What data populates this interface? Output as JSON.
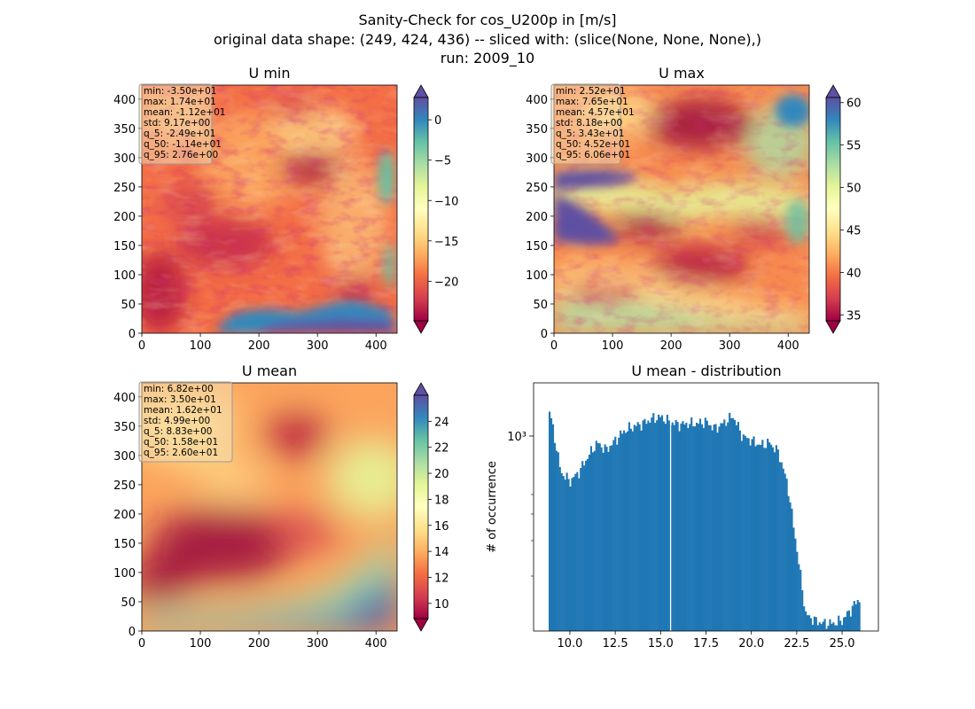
{
  "suptitle": {
    "line1": "Sanity-Check for cos_U200p in [m/s]",
    "line2": "original data shape: (249, 424, 436) -- sliced with: (slice(None, None, None),)",
    "line3": "run: 2009_10"
  },
  "panels": {
    "umin": {
      "title": "U min",
      "stats": [
        "min: -3.50e+01",
        "max: 1.74e+01",
        "mean: -1.12e+01",
        "std: 9.17e+00",
        "q_5: -2.49e+01",
        "q_50: -1.14e+01",
        "q_95: 2.76e+00"
      ],
      "x_ticks": [
        "0",
        "100",
        "200",
        "300",
        "400"
      ],
      "y_ticks": [
        "0",
        "50",
        "100",
        "150",
        "200",
        "250",
        "300",
        "350",
        "400"
      ],
      "colorbar_ticks": [
        "0",
        "−5",
        "−10",
        "−15",
        "−20"
      ]
    },
    "umax": {
      "title": "U max",
      "stats": [
        "min: 2.52e+01",
        "max: 7.65e+01",
        "mean: 4.57e+01",
        "std: 8.18e+00",
        "q_5: 3.43e+01",
        "q_50: 4.52e+01",
        "q_95: 6.06e+01"
      ],
      "x_ticks": [
        "0",
        "100",
        "200",
        "300",
        "400"
      ],
      "y_ticks": [
        "0",
        "50",
        "100",
        "150",
        "200",
        "250",
        "300",
        "350",
        "400"
      ],
      "colorbar_ticks": [
        "60",
        "55",
        "50",
        "45",
        "40",
        "35"
      ]
    },
    "umean": {
      "title": "U mean",
      "stats": [
        "min: 6.82e+00",
        "max: 3.50e+01",
        "mean: 1.62e+01",
        "std: 4.99e+00",
        "q_5: 8.83e+00",
        "q_50: 1.58e+01",
        "q_95: 2.60e+01"
      ],
      "x_ticks": [
        "0",
        "100",
        "200",
        "300",
        "400"
      ],
      "y_ticks": [
        "0",
        "50",
        "100",
        "150",
        "200",
        "250",
        "300",
        "350",
        "400"
      ],
      "colorbar_ticks": [
        "24",
        "22",
        "20",
        "18",
        "16",
        "14",
        "12",
        "10"
      ]
    },
    "hist": {
      "title": "U mean - distribution",
      "ylabel": "# of occurrence",
      "ytick_label": "10³",
      "x_ticks": [
        "10.0",
        "12.5",
        "15.0",
        "17.5",
        "20.0",
        "22.5",
        "25.0"
      ]
    }
  },
  "colors": {
    "bar": "#1f77b4",
    "spectral": [
      "#9e0142",
      "#d53e4f",
      "#f46d43",
      "#fdae61",
      "#fee08b",
      "#ffffbf",
      "#e6f598",
      "#abdda4",
      "#66c2a5",
      "#3288bd",
      "#5e4fa2"
    ]
  },
  "chart_data": [
    {
      "type": "heatmap",
      "title": "U min",
      "xlim": [
        0,
        436
      ],
      "ylim": [
        0,
        424
      ],
      "colormap": "Spectral",
      "colorbar_range": [
        -24.9,
        2.76
      ]
    },
    {
      "type": "heatmap",
      "title": "U max",
      "xlim": [
        0,
        436
      ],
      "ylim": [
        0,
        424
      ],
      "colormap": "Spectral",
      "colorbar_range": [
        34.3,
        60.6
      ]
    },
    {
      "type": "heatmap",
      "title": "U mean",
      "xlim": [
        0,
        436
      ],
      "ylim": [
        0,
        424
      ],
      "colormap": "Spectral",
      "colorbar_range": [
        8.83,
        26.0
      ]
    },
    {
      "type": "bar",
      "title": "U mean - distribution",
      "ylabel": "# of occurrence",
      "yscale": "log",
      "xlim": [
        8.0,
        27.0
      ],
      "bin_range": [
        8.83,
        26.0
      ],
      "x": [
        8.9,
        9.5,
        10.0,
        10.5,
        11.0,
        11.5,
        12.0,
        12.5,
        13.0,
        13.5,
        14.0,
        14.5,
        15.0,
        15.5,
        16.0,
        16.5,
        17.0,
        17.5,
        18.0,
        18.5,
        19.0,
        19.5,
        20.0,
        20.5,
        21.0,
        21.5,
        22.0,
        22.5,
        23.0,
        23.5,
        24.0,
        24.5,
        25.0,
        25.5,
        25.9
      ],
      "values": [
        1250,
        720,
        660,
        720,
        830,
        940,
        880,
        960,
        1050,
        1090,
        1120,
        1170,
        1190,
        1140,
        1110,
        1120,
        1120,
        1140,
        1070,
        1130,
        1200,
        1000,
        960,
        920,
        940,
        860,
        640,
        360,
        195,
        185,
        180,
        180,
        185,
        205,
        225
      ]
    }
  ]
}
